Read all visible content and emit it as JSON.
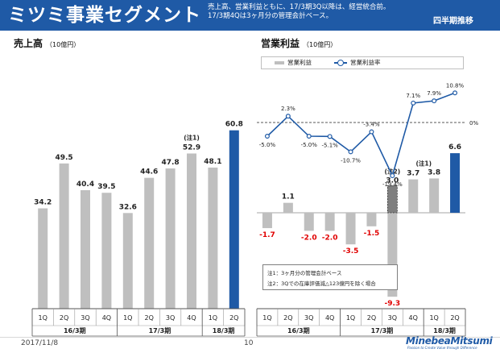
{
  "header": {
    "title": "ミツミ事業セグメント",
    "note_line1": "売上高、営業利益ともに、17/3期3Q以降は、経営統合前。",
    "note_line2": "17/3期4Qは3ヶ月分の管理会計ベース。",
    "badge": "四半期推移"
  },
  "left_section": {
    "title": "売上高",
    "unit": "（10億円）"
  },
  "right_section": {
    "title": "営業利益",
    "unit": "（10億円）"
  },
  "legend": {
    "bar_label": "営業利益",
    "line_label": "営業利益率"
  },
  "notes": {
    "note1": "注1：3ヶ月分の管理会計ベース",
    "note2": "注2：3Qでの在庫評価減△123億円を除く場合"
  },
  "footer": {
    "date": "2017/11/8",
    "page": "10",
    "logo": "MinebeaMitsumi",
    "logo_tagline": "Passion to Create Value through Difference"
  },
  "colors": {
    "header_bg": "#1f5aa6",
    "bar_gray": "#bfbfbf",
    "bar_blue": "#1f5aa6",
    "negative_label": "#e00000"
  },
  "chart_data": [
    {
      "type": "bar",
      "title": "売上高",
      "categories": [
        "1Q",
        "2Q",
        "3Q",
        "4Q",
        "1Q",
        "2Q",
        "3Q",
        "4Q",
        "1Q",
        "2Q"
      ],
      "groups": [
        {
          "label": "16/3期",
          "count": 4
        },
        {
          "label": "17/3期",
          "count": 4
        },
        {
          "label": "18/3期",
          "count": 2
        }
      ],
      "values": [
        34.2,
        49.5,
        40.4,
        39.5,
        32.6,
        44.6,
        47.8,
        52.9,
        48.1,
        60.8
      ],
      "value_labels": [
        "34.2",
        "49.5",
        "40.4",
        "39.5",
        "32.6",
        "44.6",
        "47.8",
        "52.9",
        "48.1",
        "60.8"
      ],
      "highlight_index": 9,
      "annotations": [
        {
          "index": 7,
          "text": "(注1)"
        }
      ],
      "ylim": [
        0,
        70
      ]
    },
    {
      "type": "bar+line",
      "title": "営業利益",
      "categories": [
        "1Q",
        "2Q",
        "3Q",
        "4Q",
        "1Q",
        "2Q",
        "3Q",
        "4Q",
        "1Q",
        "2Q"
      ],
      "groups": [
        {
          "label": "16/3期",
          "count": 4
        },
        {
          "label": "17/3期",
          "count": 4
        },
        {
          "label": "18/3期",
          "count": 2
        }
      ],
      "series": [
        {
          "name": "営業利益",
          "kind": "bar",
          "values": [
            -1.7,
            1.1,
            -2.0,
            -2.0,
            -3.5,
            -1.5,
            -9.3,
            3.7,
            3.8,
            6.6
          ],
          "value_labels": [
            "-1.7",
            "1.1",
            "-2.0",
            "-2.0",
            "-3.5",
            "-1.5",
            "-9.3",
            "3.7",
            "3.8",
            "6.6"
          ]
        },
        {
          "name": "営業利益率",
          "kind": "line",
          "values": [
            -5.0,
            2.3,
            -5.0,
            -5.1,
            -10.7,
            -3.4,
            -19.4,
            7.1,
            7.9,
            10.8
          ],
          "value_labels": [
            "-5.0%",
            "2.3%",
            "-5.0%",
            "-5.1%",
            "-10.7%",
            "-3.4%",
            "-19.4%",
            "7.1%",
            "7.9%",
            "10.8%"
          ]
        }
      ],
      "excluded_bar": {
        "index": 6,
        "value": 3.0,
        "label": "3.0",
        "note": "(注2)"
      },
      "highlight_index": 9,
      "annotations": [
        {
          "index": 7,
          "text": "(注1)"
        }
      ],
      "margin_zero_label": "0%",
      "legend_position": "top"
    }
  ]
}
